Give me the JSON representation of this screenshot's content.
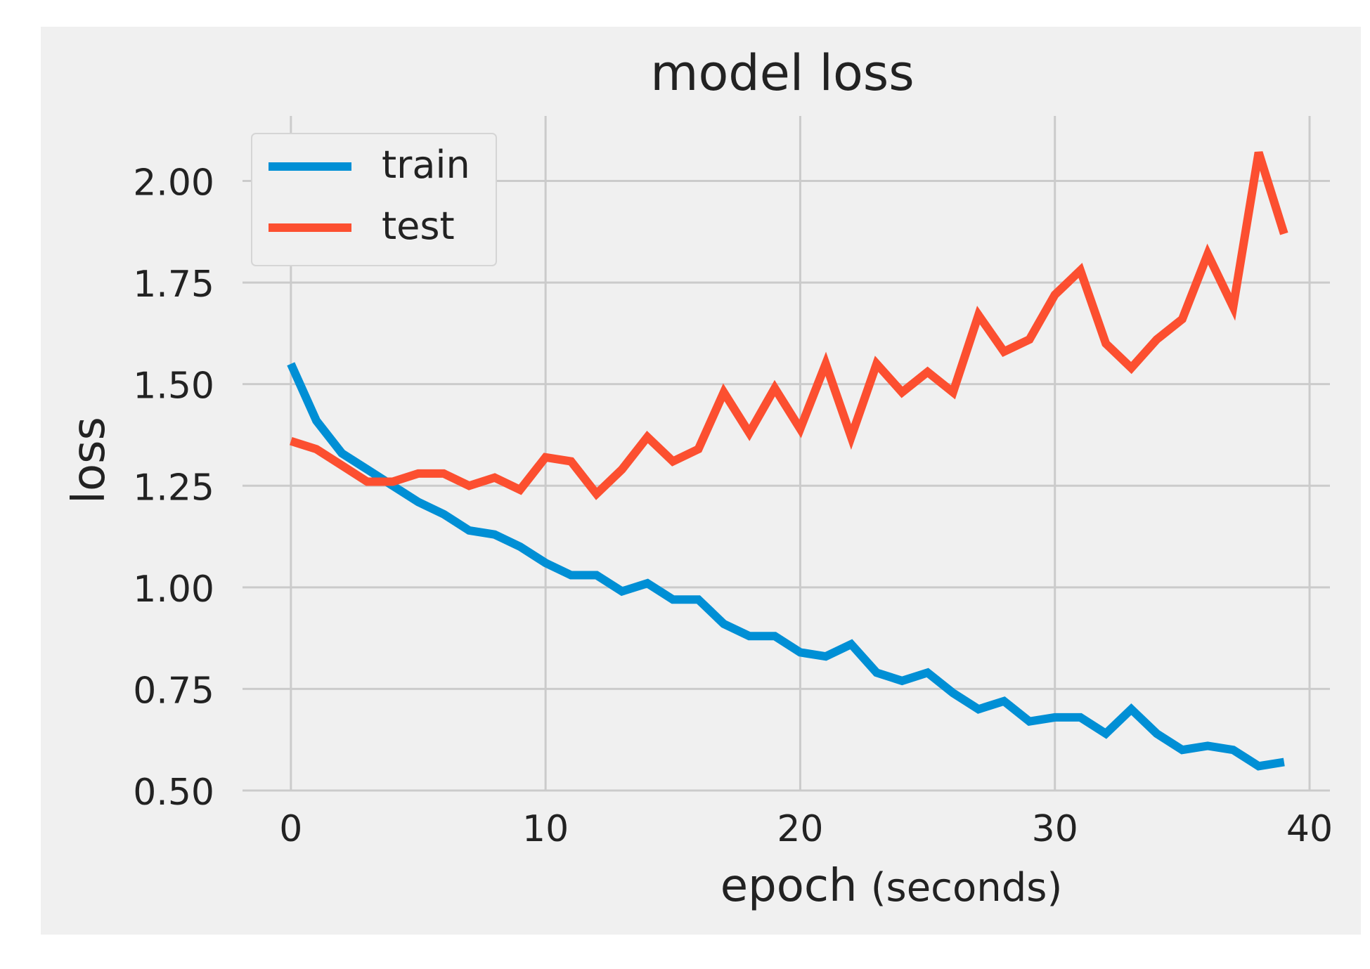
{
  "chart_data": {
    "type": "line",
    "title": "model loss",
    "xlabel": "epoch",
    "xlabel_suffix": "(seconds)",
    "ylabel": "loss",
    "xlim": [
      -1.9,
      40.8
    ],
    "ylim": [
      0.5,
      2.16
    ],
    "xticks": [
      0,
      10,
      20,
      30,
      40
    ],
    "xtick_labels": [
      "0",
      "10",
      "20",
      "30",
      "40"
    ],
    "yticks": [
      0.5,
      0.75,
      1.0,
      1.25,
      1.5,
      1.75,
      2.0
    ],
    "ytick_labels": [
      "0.50",
      "0.75",
      "1.00",
      "1.25",
      "1.50",
      "1.75",
      "2.00"
    ],
    "grid": true,
    "legend_position": "top-left",
    "x": [
      0,
      1,
      2,
      3,
      4,
      5,
      6,
      7,
      8,
      9,
      10,
      11,
      12,
      13,
      14,
      15,
      16,
      17,
      18,
      19,
      20,
      21,
      22,
      23,
      24,
      25,
      26,
      27,
      28,
      29,
      30,
      31,
      32,
      33,
      34,
      35,
      36,
      37,
      38,
      39
    ],
    "series": [
      {
        "name": "train",
        "color": "#008fd5",
        "values": [
          1.55,
          1.41,
          1.33,
          1.29,
          1.25,
          1.21,
          1.18,
          1.14,
          1.13,
          1.1,
          1.06,
          1.03,
          1.03,
          0.99,
          1.01,
          0.97,
          0.97,
          0.91,
          0.88,
          0.88,
          0.84,
          0.83,
          0.86,
          0.79,
          0.77,
          0.79,
          0.74,
          0.7,
          0.72,
          0.67,
          0.68,
          0.68,
          0.64,
          0.7,
          0.64,
          0.6,
          0.61,
          0.6,
          0.56,
          0.57
        ]
      },
      {
        "name": "test",
        "color": "#fc4f30",
        "values": [
          1.36,
          1.34,
          1.3,
          1.26,
          1.26,
          1.28,
          1.28,
          1.25,
          1.27,
          1.24,
          1.32,
          1.31,
          1.23,
          1.29,
          1.37,
          1.31,
          1.34,
          1.48,
          1.38,
          1.49,
          1.39,
          1.55,
          1.37,
          1.55,
          1.48,
          1.53,
          1.48,
          1.67,
          1.58,
          1.61,
          1.72,
          1.78,
          1.6,
          1.54,
          1.61,
          1.66,
          1.82,
          1.69,
          2.07,
          1.87
        ]
      }
    ],
    "colors": {
      "figure_background": "#f0f0f0",
      "grid": "#cbcbcb",
      "text": "#222222"
    }
  }
}
